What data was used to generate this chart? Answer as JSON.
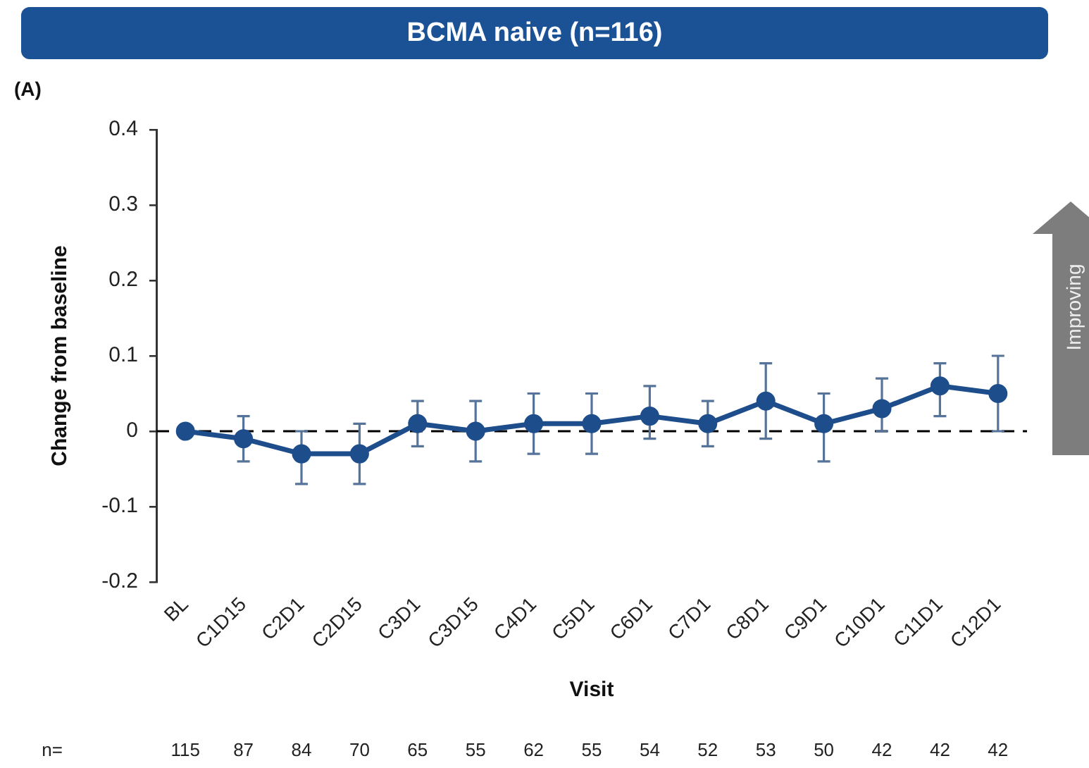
{
  "chart_data": {
    "type": "line",
    "title": "BCMA naive (n=116)",
    "subtitle": "(A)",
    "xlabel": "Visit",
    "ylabel": "Change from baseline",
    "categories": [
      "BL",
      "C1D15",
      "C2D1",
      "C2D15",
      "C3D1",
      "C3D15",
      "C4D1",
      "C5D1",
      "C6D1",
      "C7D1",
      "C8D1",
      "C9D1",
      "C10D1",
      "C11D1",
      "C12D1"
    ],
    "series": [
      {
        "color": "#1e4d8c",
        "values": [
          0,
          -0.01,
          -0.03,
          -0.03,
          0.01,
          0,
          0.01,
          0.01,
          0.02,
          0.01,
          0.04,
          0.01,
          0.03,
          0.06,
          0.05
        ],
        "errors": [
          null,
          [
            -0.04,
            0.02
          ],
          [
            -0.07,
            0
          ],
          [
            -0.07,
            0.01
          ],
          [
            -0.02,
            0.04
          ],
          [
            -0.04,
            0.04
          ],
          [
            -0.03,
            0.05
          ],
          [
            -0.03,
            0.05
          ],
          [
            -0.01,
            0.06
          ],
          [
            -0.02,
            0.04
          ],
          [
            -0.01,
            0.09
          ],
          [
            -0.04,
            0.05
          ],
          [
            0,
            0.07
          ],
          [
            0.02,
            0.09
          ],
          [
            0,
            0.1
          ]
        ]
      }
    ],
    "ylim": [
      -0.2,
      0.4
    ],
    "yticks": [
      -0.2,
      -0.1,
      0,
      0.1,
      0.2,
      0.3,
      0.4
    ],
    "grid": false,
    "legend": false,
    "marker": "circle",
    "line_style": "solid",
    "ref_lines": [
      {
        "axis": "y",
        "value": 0,
        "color": "#000000",
        "line_style": "dashed"
      }
    ],
    "annotations": [
      "Improving",
      "n=",
      "115",
      "87",
      "84",
      "70",
      "65",
      "55",
      "62",
      "55",
      "54",
      "52",
      "53",
      "50",
      "42",
      "42",
      "42"
    ]
  }
}
